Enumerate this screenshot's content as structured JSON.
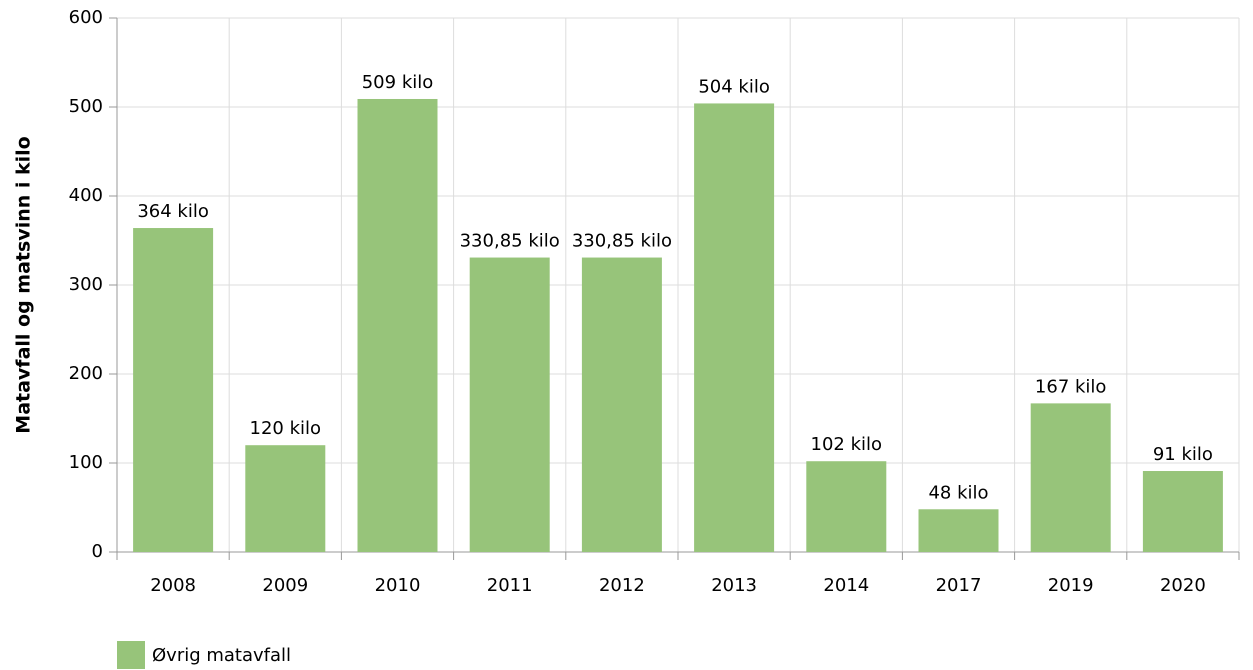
{
  "chart_data": {
    "type": "bar",
    "y_axis_label": "Matavfall og matsvinn i kilo",
    "categories": [
      "2008",
      "2009",
      "2010",
      "2011",
      "2012",
      "2013",
      "2014",
      "2017",
      "2019",
      "2020"
    ],
    "series": [
      {
        "name": "Øvrig matavfall",
        "color": "#97c47a",
        "values": [
          364,
          120,
          509,
          330.85,
          330.85,
          504,
          102,
          48,
          167,
          91
        ],
        "value_labels": [
          "364 kilo",
          "120 kilo",
          "509 kilo",
          "330,85 kilo",
          "330,85 kilo",
          "504 kilo",
          "102 kilo",
          "48 kilo",
          "167 kilo",
          "91 kilo"
        ]
      }
    ],
    "ylim": [
      0,
      600
    ],
    "yticks": [
      0,
      100,
      200,
      300,
      400,
      500,
      600
    ],
    "grid": true,
    "legend": "bottom-left"
  }
}
